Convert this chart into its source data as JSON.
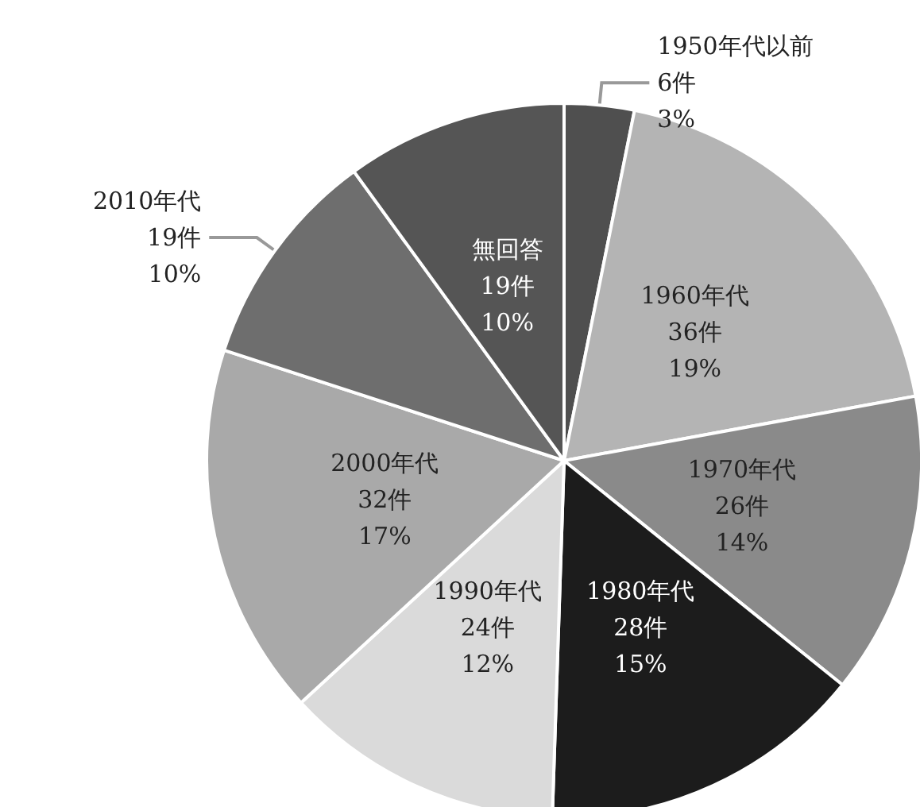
{
  "chart_data": {
    "type": "pie",
    "categories": [
      "1950年代以前",
      "1960年代",
      "1970年代",
      "1980年代",
      "1990年代",
      "2000年代",
      "2010年代",
      "無回答"
    ],
    "values": [
      6,
      36,
      26,
      28,
      24,
      32,
      19,
      19
    ],
    "value_labels": [
      "6件\n3%",
      "36件\n19%",
      "26件\n14%",
      "28件\n15%",
      "24件\n12%",
      "32件\n17%",
      "19件\n10%",
      "19件\n10%"
    ],
    "colors": [
      "#4f4f4f",
      "#b4b4b4",
      "#8a8a8a",
      "#1c1c1c",
      "#dadada",
      "#a9a9a9",
      "#6e6e6e",
      "#555555"
    ],
    "legend": false
  }
}
